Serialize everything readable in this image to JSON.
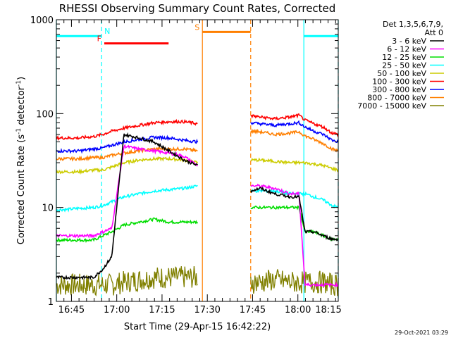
{
  "chart_data": {
    "type": "line",
    "title": "RHESSI Observing Summary Count Rates, Corrected",
    "xlabel": "Start Time (29-Apr-15 16:42:22)",
    "ylabel_main": "Corrected Count Rate (s",
    "ylabel_sup1": "-1",
    "ylabel_mid": " detector",
    "ylabel_sup2": "-1",
    "ylabel_end": ")",
    "ylog": true,
    "x_range_min": [
      -2.37,
      91.0
    ],
    "ylim": [
      1,
      1000
    ],
    "x_ticks": [
      {
        "label": "16:45",
        "min": 2.63
      },
      {
        "label": "17:00",
        "min": 17.63
      },
      {
        "label": "17:15",
        "min": 32.63
      },
      {
        "label": "17:30",
        "min": 47.63
      },
      {
        "label": "17:45",
        "min": 62.63
      },
      {
        "label": "18:00",
        "min": 77.63
      },
      {
        "label": "18:15",
        "min": 92.63
      }
    ],
    "y_ticks": [
      {
        "label": "1",
        "value": 1
      },
      {
        "label": "10",
        "value": 10
      },
      {
        "label": "100",
        "value": 100
      },
      {
        "label": "1000",
        "value": 1000
      }
    ],
    "legend_header": [
      "Det 1,3,5,6,7,9,",
      "Att 0"
    ],
    "series": [
      {
        "name": "3 - 6 keV",
        "color": "#000000"
      },
      {
        "name": "6 - 12 keV",
        "color": "#ff00ff"
      },
      {
        "name": "12 - 25 keV",
        "color": "#00dd00"
      },
      {
        "name": "25 - 50 keV",
        "color": "#00ffff"
      },
      {
        "name": "50 - 100 keV",
        "color": "#cccc00"
      },
      {
        "name": "100 - 300 keV",
        "color": "#ff0000"
      },
      {
        "name": "300 - 800 keV",
        "color": "#0000ff"
      },
      {
        "name": "800 - 7000 keV",
        "color": "#ff7f00"
      },
      {
        "name": "7000 - 15000 keV",
        "color": "#808000"
      }
    ],
    "segments": [
      {
        "x": [
          -2.37,
          1.0,
          5.0,
          10.0,
          13.0,
          16.0,
          20.0,
          25.0,
          30.0,
          35.0,
          40.0,
          44.4
        ],
        "levels": [
          [
            1.8,
            1.8,
            1.8,
            1.8,
            2.2,
            3.0,
            60,
            55,
            50,
            40,
            32,
            28
          ],
          [
            5.0,
            5.0,
            5.0,
            5.0,
            5.5,
            6.0,
            45,
            42,
            40,
            38,
            35,
            28
          ],
          [
            4.5,
            4.5,
            4.5,
            4.5,
            5.0,
            5.5,
            6.5,
            7.0,
            7.5,
            7.0,
            7.0,
            7.0
          ],
          [
            9.5,
            9.5,
            9.8,
            10.0,
            10.5,
            11.5,
            13.0,
            14.0,
            15.0,
            15.5,
            16.0,
            17.0
          ],
          [
            24,
            24,
            24,
            25,
            25,
            27,
            30,
            32,
            33,
            33,
            32,
            30
          ],
          [
            55,
            55,
            55,
            57,
            60,
            65,
            70,
            75,
            80,
            82,
            82,
            78
          ],
          [
            40,
            40,
            40,
            42,
            43,
            46,
            50,
            53,
            56,
            55,
            52,
            50
          ],
          [
            33,
            33,
            33,
            34,
            34,
            36,
            38,
            40,
            42,
            42,
            42,
            40
          ],
          [
            1.5,
            1.5,
            1.5,
            1.5,
            1.5,
            1.5,
            1.6,
            1.7,
            1.8,
            1.8,
            1.8,
            1.8
          ]
        ]
      },
      {
        "x": [
          62.0,
          65.0,
          70.0,
          75.0,
          78.0,
          80.0,
          83.0,
          86.0,
          89.0,
          91.0
        ],
        "levels": [
          [
            15,
            16,
            14,
            13,
            13,
            5.5,
            5.5,
            5.0,
            4.6,
            4.6
          ],
          [
            17,
            17,
            16,
            14,
            14,
            1.5,
            1.5,
            1.5,
            1.5,
            1.5
          ],
          [
            10,
            10,
            10,
            10,
            10,
            5.5,
            5.5,
            5.0,
            4.6,
            4.6
          ],
          [
            15,
            15,
            15,
            14,
            14,
            14,
            13,
            12,
            10.5,
            10
          ],
          [
            32,
            32,
            31,
            30,
            30,
            30,
            29,
            28,
            26,
            25
          ],
          [
            95,
            92,
            88,
            92,
            96,
            85,
            78,
            72,
            62,
            60
          ],
          [
            80,
            78,
            75,
            78,
            80,
            72,
            65,
            60,
            52,
            50
          ],
          [
            65,
            64,
            60,
            62,
            64,
            58,
            53,
            48,
            42,
            40
          ],
          [
            1.6,
            1.6,
            1.7,
            1.6,
            1.6,
            1.6,
            1.6,
            1.6,
            1.5,
            1.5
          ]
        ]
      }
    ],
    "flag_bars": [
      {
        "label": "N",
        "color": "#00ffff",
        "intervals": [
          [
            -2.37,
            12.6
          ],
          [
            79.6,
            91.0
          ]
        ],
        "level": 670
      },
      {
        "label": "F",
        "color": "#ff0000",
        "intervals": [
          [
            13.5,
            34.8
          ]
        ],
        "level": 560
      },
      {
        "label": "S",
        "color": "#ff7f00",
        "intervals": [
          [
            46.0,
            62.0
          ]
        ],
        "level": 740
      }
    ],
    "vertical_lines": [
      {
        "color": "#00ffff",
        "min": -2.37,
        "style": "solid"
      },
      {
        "color": "#00ffff",
        "min": 12.6,
        "style": "dashed"
      },
      {
        "color": "#ff7f00",
        "min": 46.0,
        "style": "solid"
      },
      {
        "color": "#ff7f00",
        "min": 62.0,
        "style": "dashed"
      },
      {
        "color": "#00ffff",
        "min": 79.6,
        "style": "solid"
      },
      {
        "color": "#00ffff",
        "min": 91.0,
        "style": "dashed"
      }
    ]
  },
  "footer": {
    "timestamp": "29-Oct-2021 03:29"
  }
}
